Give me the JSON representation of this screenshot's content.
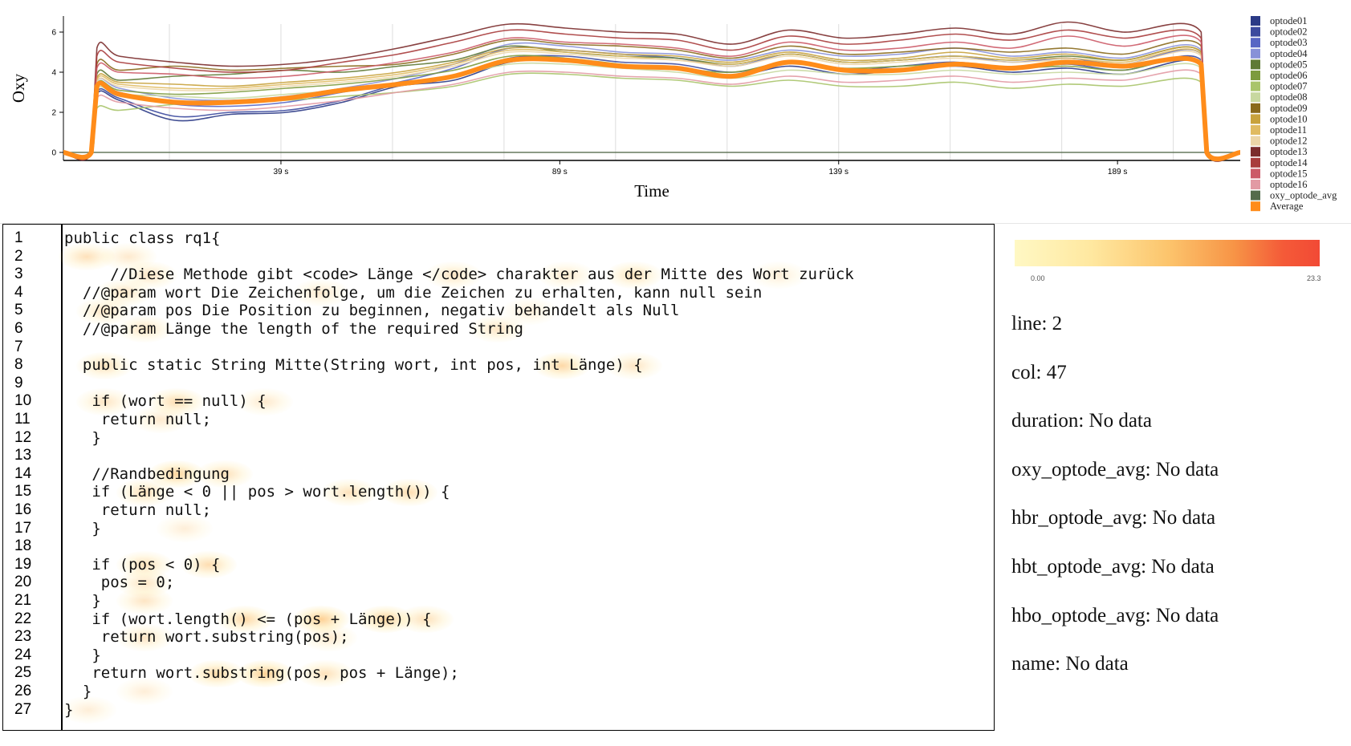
{
  "chart_data": {
    "type": "line",
    "ylabel": "Oxy",
    "xlabel": "Time",
    "y_ticks": [
      "0",
      "2",
      "4",
      "6"
    ],
    "ylim": [
      -0.4,
      6.8
    ],
    "xlim": [
      0,
      211
    ],
    "x_ticks": [
      {
        "value": 39,
        "label": "39 s"
      },
      {
        "value": 89,
        "label": "89 s"
      },
      {
        "value": 139,
        "label": "139 s"
      },
      {
        "value": 189,
        "label": "189 s"
      }
    ],
    "legend": [
      "optode01",
      "optode02",
      "optode03",
      "optode04",
      "optode05",
      "optode06",
      "optode07",
      "optode08",
      "optode09",
      "optode10",
      "optode11",
      "optode12",
      "optode13",
      "optode14",
      "optode15",
      "optode16",
      "oxy_optode_avg",
      "Average"
    ],
    "legend_colors": [
      "#2b3a86",
      "#3c4a9e",
      "#5866c4",
      "#8891d8",
      "#5f7a35",
      "#7d9b3e",
      "#a9c46a",
      "#c8d8a0",
      "#8a6a1c",
      "#c8a23c",
      "#e0bb62",
      "#ecd6a8",
      "#7b2c2c",
      "#a83c3c",
      "#cc5a67",
      "#e29aa4",
      "#546b4b",
      "#ff8c1a"
    ],
    "x": [
      0,
      5,
      6,
      10,
      20,
      30,
      40,
      50,
      60,
      70,
      80,
      90,
      100,
      110,
      120,
      130,
      140,
      150,
      160,
      170,
      180,
      190,
      204,
      205,
      211
    ],
    "series": [
      {
        "name": "optode01",
        "values": [
          0,
          0,
          2.9,
          2.6,
          1.6,
          1.9,
          2.0,
          2.5,
          3.3,
          3.6,
          4.5,
          4.6,
          4.3,
          4.2,
          3.8,
          4.3,
          3.9,
          4.1,
          4.3,
          4.0,
          4.2,
          3.9,
          4.4,
          0,
          0
        ]
      },
      {
        "name": "optode02",
        "values": [
          0,
          0,
          3.0,
          2.7,
          1.8,
          2.0,
          2.1,
          2.6,
          3.4,
          3.8,
          4.7,
          4.8,
          4.5,
          4.4,
          4.0,
          4.5,
          4.1,
          4.3,
          4.5,
          4.2,
          4.4,
          4.1,
          4.6,
          0,
          0
        ]
      },
      {
        "name": "optode03",
        "values": [
          0,
          0,
          3.3,
          3.0,
          2.4,
          2.3,
          2.5,
          3.0,
          3.5,
          4.2,
          5.2,
          5.1,
          4.9,
          4.7,
          4.3,
          4.9,
          4.5,
          4.6,
          4.8,
          4.5,
          4.7,
          4.4,
          4.9,
          0,
          0
        ]
      },
      {
        "name": "optode04",
        "values": [
          0,
          0,
          3.5,
          3.2,
          2.7,
          2.6,
          2.8,
          3.2,
          3.7,
          4.4,
          5.4,
          5.3,
          5.0,
          4.9,
          4.6,
          5.1,
          4.8,
          4.9,
          5.2,
          4.8,
          5.0,
          4.7,
          5.1,
          0,
          0
        ]
      },
      {
        "name": "optode05",
        "values": [
          0,
          0,
          3.9,
          3.6,
          3.8,
          3.9,
          4.1,
          4.0,
          4.3,
          4.6,
          5.3,
          5.0,
          4.8,
          4.7,
          4.4,
          4.9,
          4.5,
          4.6,
          4.8,
          4.6,
          4.8,
          4.6,
          5.0,
          0,
          0
        ]
      },
      {
        "name": "optode06",
        "values": [
          0,
          0,
          3.4,
          3.1,
          2.9,
          3.0,
          3.2,
          3.4,
          3.7,
          4.1,
          4.8,
          4.7,
          4.4,
          4.2,
          4.0,
          4.5,
          4.2,
          4.3,
          4.4,
          4.2,
          4.3,
          4.1,
          4.5,
          0,
          0
        ]
      },
      {
        "name": "optode07",
        "values": [
          0,
          0,
          2.2,
          2.1,
          2.4,
          2.5,
          2.6,
          2.8,
          3.0,
          3.3,
          3.9,
          3.9,
          3.7,
          3.6,
          3.3,
          3.6,
          3.3,
          3.3,
          3.5,
          3.2,
          3.4,
          3.3,
          3.5,
          0,
          0
        ]
      },
      {
        "name": "optode08",
        "values": [
          0,
          0,
          3.1,
          2.9,
          2.8,
          2.7,
          2.9,
          3.1,
          3.4,
          3.8,
          4.4,
          4.4,
          4.2,
          4.0,
          3.7,
          4.1,
          3.9,
          3.9,
          4.1,
          3.9,
          4.0,
          3.9,
          4.2,
          0,
          0
        ]
      },
      {
        "name": "optode09",
        "values": [
          0,
          0,
          4.4,
          4.1,
          4.3,
          4.1,
          4.2,
          4.3,
          4.4,
          4.9,
          5.6,
          5.4,
          5.3,
          5.1,
          4.7,
          5.3,
          4.9,
          5.0,
          5.2,
          5.0,
          5.2,
          4.9,
          5.3,
          0,
          0
        ]
      },
      {
        "name": "optode10",
        "values": [
          0,
          0,
          3.7,
          3.5,
          3.4,
          3.3,
          3.5,
          3.7,
          4.0,
          4.5,
          5.2,
          5.1,
          4.9,
          4.8,
          4.5,
          5.0,
          4.6,
          4.7,
          5.0,
          4.7,
          4.9,
          4.6,
          5.0,
          0,
          0
        ]
      },
      {
        "name": "optode11",
        "values": [
          0,
          0,
          3.6,
          3.4,
          3.2,
          3.2,
          3.4,
          3.6,
          3.9,
          4.4,
          5.1,
          5.0,
          4.8,
          4.6,
          4.4,
          4.9,
          4.5,
          4.6,
          4.8,
          4.6,
          4.7,
          4.5,
          4.9,
          0,
          0
        ]
      },
      {
        "name": "optode12",
        "values": [
          0,
          0,
          3.5,
          3.3,
          3.1,
          3.1,
          3.3,
          3.5,
          3.8,
          4.3,
          5.0,
          4.9,
          4.7,
          4.6,
          4.3,
          4.8,
          4.4,
          4.5,
          4.7,
          4.5,
          4.6,
          4.4,
          4.8,
          0,
          0
        ]
      },
      {
        "name": "optode13",
        "values": [
          0,
          0,
          5.2,
          4.8,
          4.5,
          4.3,
          4.4,
          4.7,
          5.2,
          5.8,
          6.4,
          6.2,
          6.0,
          5.9,
          5.4,
          6.1,
          5.7,
          5.9,
          6.2,
          5.9,
          6.5,
          6.0,
          6.0,
          0,
          0
        ]
      },
      {
        "name": "optode14",
        "values": [
          0,
          0,
          4.8,
          4.5,
          4.2,
          4.0,
          4.1,
          4.5,
          4.9,
          5.5,
          6.1,
          5.9,
          5.7,
          5.6,
          5.1,
          5.8,
          5.4,
          5.6,
          5.9,
          5.6,
          6.1,
          5.7,
          5.7,
          0,
          0
        ]
      },
      {
        "name": "optode15",
        "values": [
          0,
          0,
          4.2,
          4.0,
          3.9,
          3.7,
          3.8,
          4.1,
          4.5,
          5.0,
          5.7,
          5.5,
          5.4,
          5.2,
          4.8,
          5.5,
          5.1,
          5.2,
          5.5,
          5.2,
          5.8,
          5.3,
          5.5,
          0,
          0
        ]
      },
      {
        "name": "optode16",
        "values": [
          0,
          0,
          2.7,
          2.5,
          2.2,
          2.1,
          2.3,
          2.6,
          3.0,
          3.4,
          4.0,
          4.0,
          3.8,
          3.7,
          3.4,
          3.8,
          3.5,
          3.6,
          3.8,
          3.5,
          3.7,
          3.6,
          3.9,
          0,
          0
        ]
      },
      {
        "name": "oxy_optode_avg",
        "values": [
          0,
          0,
          0,
          0,
          0,
          0,
          0,
          0,
          0,
          0,
          0,
          0,
          0,
          0,
          0,
          0,
          0,
          0,
          0,
          0,
          0,
          0,
          0,
          0,
          0
        ]
      },
      {
        "name": "Average",
        "values": [
          0,
          0,
          3.3,
          2.9,
          2.5,
          2.5,
          2.7,
          3.1,
          3.4,
          3.8,
          4.6,
          4.6,
          4.3,
          4.2,
          3.8,
          4.5,
          4.1,
          4.1,
          4.4,
          4.2,
          4.5,
          4.3,
          4.4,
          0,
          0
        ]
      }
    ]
  },
  "code": {
    "lines": [
      "public class rq1{",
      "",
      "     //Diese Methode gibt <code> Länge </code> charakter aus der Mitte des Wort zurück",
      "  //@param wort Die Zeichenfolge, um die Zeichen zu erhalten, kann null sein",
      "  //@param pos Die Position zu beginnen, negativ behandelt als Null",
      "  //@param Länge the length of the required String",
      "",
      "  public static String Mitte(String wort, int pos, int Länge) {",
      "",
      "   if (wort == null) {",
      "    return null;",
      "   }",
      "",
      "   //Randbedingung",
      "   if (Länge < 0 || pos > wort.length()) {",
      "    return null;",
      "   }",
      "",
      "   if (pos < 0) {",
      "    pos = 0;",
      "   }",
      "   if (wort.length() <= (pos + Länge)) {",
      "    return wort.substring(pos);",
      "   }",
      "   return wort.substring(pos, pos + Länge);",
      "  }",
      "}"
    ],
    "line_numbers": [
      "1",
      "2",
      "3",
      "4",
      "5",
      "6",
      "7",
      "8",
      "9",
      "10",
      "11",
      "12",
      "13",
      "14",
      "15",
      "16",
      "17",
      "18",
      "19",
      "20",
      "21",
      "22",
      "23",
      "24",
      "25",
      "26",
      "27"
    ]
  },
  "heatmap_legend": {
    "min_label": "0.00",
    "max_label": "23.3",
    "colors": [
      "#fff8c4",
      "#fcc56d",
      "#f24a35"
    ]
  },
  "info": {
    "line": "line: 2",
    "col": "col: 47",
    "duration": "duration: No data",
    "oxy_optode_avg": "oxy_optode_avg: No data",
    "hbr_optode_avg": "hbr_optode_avg: No data",
    "hbt_optode_avg": "hbt_optode_avg: No data",
    "hbo_optode_avg": "hbo_optode_avg: No data",
    "name": "name: No data"
  }
}
